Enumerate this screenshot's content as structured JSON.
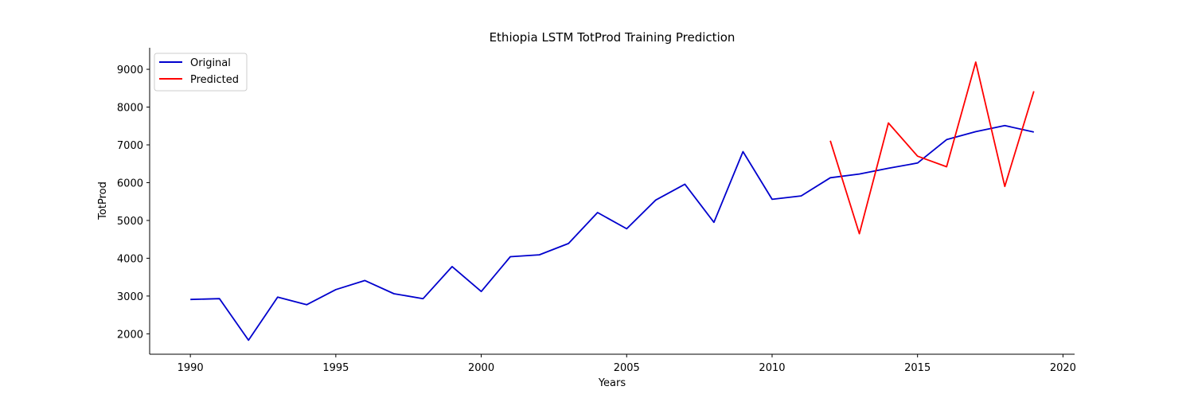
{
  "chart_data": {
    "type": "line",
    "title": "Ethiopia LSTM TotProd Training Prediction",
    "xlabel": "Years",
    "ylabel": "TotProd",
    "xlim": [
      1988.6,
      2020.4
    ],
    "ylim": [
      1460,
      9570
    ],
    "x_ticks": [
      1990,
      1995,
      2000,
      2005,
      2010,
      2015,
      2020
    ],
    "y_ticks": [
      2000,
      3000,
      4000,
      5000,
      6000,
      7000,
      8000,
      9000
    ],
    "grid": false,
    "legend_position": "top-left",
    "series": [
      {
        "name": "Original",
        "color": "#0000cd",
        "x": [
          1990,
          1991,
          1992,
          1993,
          1994,
          1995,
          1996,
          1997,
          1998,
          1999,
          2000,
          2001,
          2002,
          2003,
          2004,
          2005,
          2006,
          2007,
          2008,
          2009,
          2010,
          2011,
          2012,
          2013,
          2014,
          2015,
          2016,
          2017,
          2018,
          2019
        ],
        "values": [
          2910,
          2930,
          1830,
          2970,
          2770,
          3170,
          3410,
          3060,
          2930,
          3780,
          3120,
          4040,
          4090,
          4390,
          5210,
          4780,
          5540,
          5960,
          4950,
          6820,
          5560,
          5650,
          6130,
          6230,
          6380,
          6520,
          7140,
          7350,
          7510,
          7340
        ]
      },
      {
        "name": "Predicted",
        "color": "#ff0000",
        "x": [
          2012,
          2013,
          2014,
          2015,
          2016,
          2017,
          2018,
          2019
        ],
        "values": [
          7110,
          4650,
          7580,
          6700,
          6420,
          9190,
          5900,
          8420
        ]
      }
    ]
  }
}
